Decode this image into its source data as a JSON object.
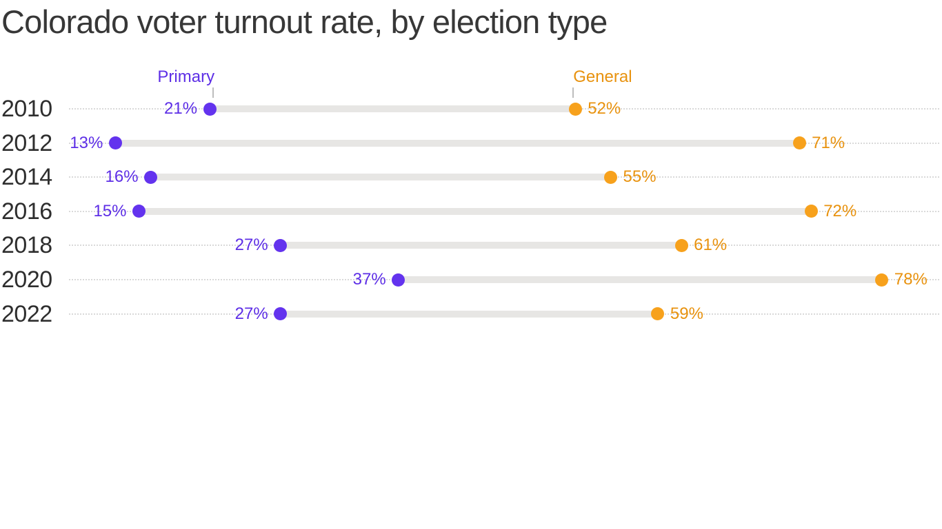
{
  "title": "Colorado voter turnout rate, by election type",
  "legend": {
    "primary_label": "Primary",
    "general_label": "General"
  },
  "colors": {
    "primary": "#6333ee",
    "general": "#f7a11c",
    "primary_text": "#5d2ee6",
    "general_text": "#e8920e",
    "bar": "#e7e6e4",
    "dotted_guide": "#d9d9d9",
    "tick": "#bdbdbd",
    "title_text": "#373737",
    "year_text": "#2e2e2e"
  },
  "chart_data": {
    "type": "dumbbell",
    "title": "Colorado voter turnout rate, by election type",
    "categories": [
      "2010",
      "2012",
      "2014",
      "2016",
      "2018",
      "2020",
      "2022"
    ],
    "series": [
      {
        "name": "Primary",
        "color": "#6333ee",
        "values": [
          21,
          13,
          16,
          15,
          27,
          37,
          27
        ]
      },
      {
        "name": "General",
        "color": "#f7a11c",
        "values": [
          52,
          71,
          55,
          72,
          61,
          78,
          59
        ]
      }
    ],
    "value_suffix": "%",
    "xlim": [
      9,
      83
    ],
    "grid": "dotted horizontal guide line per row, full width",
    "legend_position": "top, labels with small tick anchored above the 2010 row dots",
    "notes": "Primary value labels sit left of purple dots; General value labels sit right of orange dots"
  }
}
